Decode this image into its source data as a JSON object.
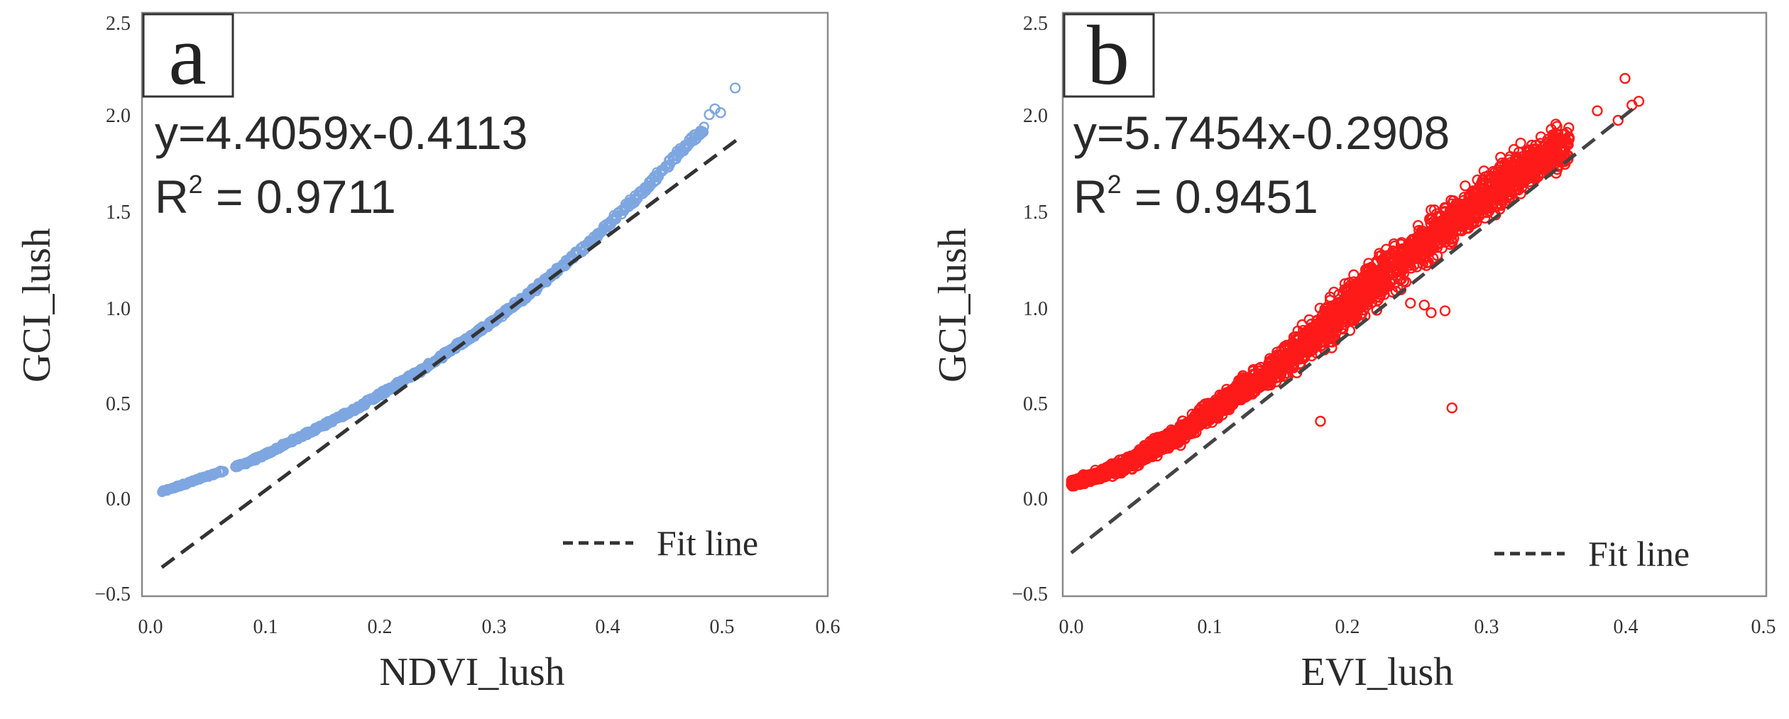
{
  "chart_data": [
    {
      "type": "scatter",
      "panel_label": "a",
      "xlabel": "NDVI_lush",
      "ylabel": "GCI_lush",
      "xlim": [
        0.0,
        0.6
      ],
      "ylim": [
        -0.5,
        2.5
      ],
      "xticks": [
        "0.0",
        "0.1",
        "0.2",
        "0.3",
        "0.4",
        "0.5",
        "0.6"
      ],
      "yticks": [
        "−0.5",
        "0.0",
        "0.5",
        "1.0",
        "1.5",
        "2.0",
        "2.5"
      ],
      "equation": "y=4.4059x-0.4113",
      "r2_prefix": "R",
      "r2_sup": "2",
      "r2_value": " = 0.9711",
      "fit": {
        "slope": 4.4059,
        "intercept": -0.4113,
        "x_range": [
          0.01,
          0.52
        ]
      },
      "legend_label": "Fit line",
      "marker_color": "#7ea6e0",
      "fit_color": "#333333",
      "series": [
        {
          "name": "data",
          "shape": "curve",
          "x": [
            0.01,
            0.02,
            0.03,
            0.04,
            0.05,
            0.06,
            0.08,
            0.1,
            0.12,
            0.14,
            0.16,
            0.18,
            0.2,
            0.22,
            0.24,
            0.26,
            0.28,
            0.3,
            0.32,
            0.34,
            0.36,
            0.38,
            0.4,
            0.42,
            0.44,
            0.46,
            0.47,
            0.48,
            0.49
          ],
          "y": [
            0.03,
            0.05,
            0.07,
            0.09,
            0.11,
            0.13,
            0.17,
            0.22,
            0.28,
            0.34,
            0.4,
            0.46,
            0.53,
            0.6,
            0.67,
            0.75,
            0.83,
            0.91,
            1.0,
            1.09,
            1.19,
            1.29,
            1.4,
            1.52,
            1.63,
            1.76,
            1.82,
            1.88,
            1.94
          ],
          "outliers": [
            [
              0.495,
              2.01
            ],
            [
              0.5,
              2.04
            ],
            [
              0.505,
              2.02
            ],
            [
              0.518,
              2.15
            ]
          ]
        }
      ]
    },
    {
      "type": "scatter",
      "panel_label": "b",
      "xlabel": "EVI_lush",
      "ylabel": "GCI_lush",
      "xlim": [
        0.0,
        0.5
      ],
      "ylim": [
        -0.5,
        2.5
      ],
      "xticks": [
        "0.0",
        "0.1",
        "0.2",
        "0.3",
        "0.4",
        "0.5"
      ],
      "yticks": [
        "−0.5",
        "0.0",
        "0.5",
        "1.0",
        "1.5",
        "2.0",
        "2.5"
      ],
      "equation": "y=5.7454x-0.2908",
      "r2_prefix": "R",
      "r2_sup": "2",
      "r2_value": " = 0.9451",
      "fit": {
        "slope": 5.7454,
        "intercept": -0.2908,
        "x_range": [
          0.0,
          0.41
        ]
      },
      "legend_label": "Fit line",
      "marker_color": "#ff1a1a",
      "fit_color": "#444444",
      "series": [
        {
          "name": "data",
          "shape": "band",
          "x": [
            0.0,
            0.02,
            0.04,
            0.06,
            0.08,
            0.1,
            0.12,
            0.14,
            0.16,
            0.18,
            0.2,
            0.22,
            0.24,
            0.26,
            0.28,
            0.3,
            0.32,
            0.34,
            0.36
          ],
          "y_low": [
            0.05,
            0.08,
            0.13,
            0.2,
            0.27,
            0.37,
            0.48,
            0.55,
            0.63,
            0.74,
            0.85,
            0.98,
            1.1,
            1.22,
            1.33,
            1.45,
            1.55,
            1.63,
            1.72
          ],
          "y_high": [
            0.1,
            0.15,
            0.22,
            0.32,
            0.41,
            0.52,
            0.62,
            0.72,
            0.86,
            1.0,
            1.16,
            1.28,
            1.4,
            1.51,
            1.63,
            1.74,
            1.85,
            1.93,
            1.98
          ],
          "outliers": [
            [
              0.18,
              0.4
            ],
            [
              0.275,
              0.47
            ],
            [
              0.4,
              2.2
            ],
            [
              0.395,
              1.98
            ],
            [
              0.405,
              2.06
            ],
            [
              0.41,
              2.08
            ],
            [
              0.38,
              2.03
            ],
            [
              0.35,
              1.96
            ],
            [
              0.245,
              1.02
            ],
            [
              0.26,
              0.97
            ],
            [
              0.27,
              0.98
            ],
            [
              0.255,
              1.01
            ]
          ]
        }
      ]
    }
  ]
}
